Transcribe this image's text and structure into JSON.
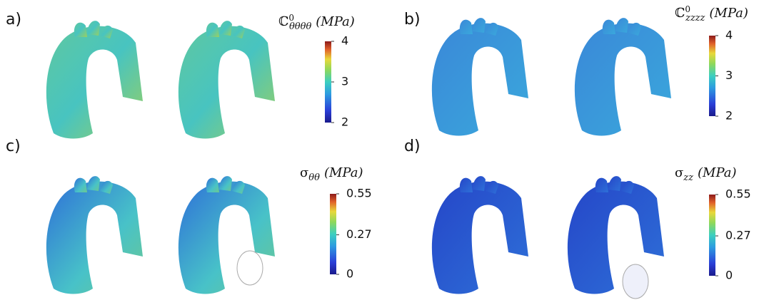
{
  "panels": [
    {
      "label": "a)",
      "title": {
        "symbol": "ℂ",
        "sup": "0",
        "sub": "θθθθ",
        "unit": "(MPa)"
      },
      "range": [
        2,
        4
      ],
      "ticks": [
        2,
        3,
        4
      ]
    },
    {
      "label": "b)",
      "title": {
        "symbol": "ℂ",
        "sup": "0",
        "sub": "zzzz",
        "unit": "(MPa)"
      },
      "range": [
        2,
        4
      ],
      "ticks": [
        2,
        3,
        4
      ]
    },
    {
      "label": "c)",
      "title": {
        "symbol": "σ",
        "sub": "θθ",
        "unit": "(MPa)"
      },
      "range": [
        0,
        0.55
      ],
      "ticks": [
        0,
        0.27,
        0.55
      ]
    },
    {
      "label": "d)",
      "title": {
        "symbol": "σ",
        "sub": "zz",
        "unit": "(MPa)"
      },
      "range": [
        0,
        0.55
      ],
      "ticks": [
        0,
        0.27,
        0.55
      ]
    }
  ]
}
